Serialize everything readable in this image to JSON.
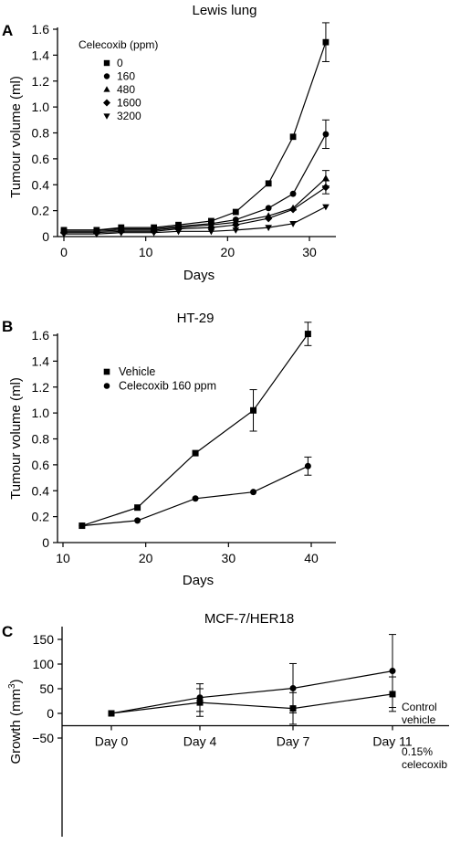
{
  "chart_data": [
    {
      "panel": "A",
      "type": "line",
      "title": "Lewis lung",
      "xlabel": "Days",
      "ylabel": "Tumour volume (ml)",
      "xlim": [
        0,
        34
      ],
      "ylim": [
        0,
        1.6
      ],
      "x_ticks": [
        0,
        10,
        20,
        30
      ],
      "y_ticks": [
        0,
        0.2,
        0.4,
        0.6,
        0.8,
        1.0,
        1.2,
        1.4,
        1.6
      ],
      "y_tick_labels": [
        "0",
        "0.2",
        "0.4",
        "0.6",
        "0.8",
        "1.0",
        "1.2",
        "1.4",
        "1.6"
      ],
      "legend_title": "Celecoxib (ppm)",
      "legend_position": "top-left",
      "series": [
        {
          "name": "0",
          "marker": "square",
          "x": [
            0,
            4,
            7,
            11,
            14,
            18,
            21,
            25,
            28,
            32
          ],
          "y": [
            0.05,
            0.05,
            0.07,
            0.07,
            0.09,
            0.12,
            0.19,
            0.41,
            0.77,
            1.5
          ],
          "err": [
            0,
            0,
            0,
            0,
            0,
            0,
            0,
            0,
            0,
            0.15
          ]
        },
        {
          "name": "160",
          "marker": "circle",
          "x": [
            0,
            4,
            7,
            11,
            14,
            18,
            21,
            25,
            28,
            32
          ],
          "y": [
            0.05,
            0.05,
            0.06,
            0.06,
            0.08,
            0.1,
            0.13,
            0.22,
            0.33,
            0.79
          ],
          "err": [
            0,
            0,
            0,
            0,
            0,
            0,
            0,
            0,
            0,
            0.11
          ]
        },
        {
          "name": "480",
          "marker": "triangle-up",
          "x": [
            0,
            4,
            7,
            11,
            14,
            18,
            21,
            25,
            28,
            32
          ],
          "y": [
            0.04,
            0.04,
            0.05,
            0.05,
            0.07,
            0.09,
            0.11,
            0.16,
            0.22,
            0.45
          ],
          "err": [
            0,
            0,
            0,
            0,
            0,
            0,
            0,
            0,
            0,
            0.06
          ]
        },
        {
          "name": "1600",
          "marker": "diamond",
          "x": [
            0,
            4,
            7,
            11,
            14,
            18,
            21,
            25,
            28,
            32
          ],
          "y": [
            0.03,
            0.03,
            0.04,
            0.04,
            0.06,
            0.07,
            0.09,
            0.14,
            0.21,
            0.38
          ],
          "err": [
            0,
            0,
            0,
            0,
            0,
            0,
            0,
            0,
            0,
            0.05
          ]
        },
        {
          "name": "3200",
          "marker": "triangle-down",
          "x": [
            0,
            4,
            7,
            11,
            14,
            18,
            21,
            25,
            28,
            32
          ],
          "y": [
            0.02,
            0.02,
            0.03,
            0.03,
            0.04,
            0.04,
            0.05,
            0.07,
            0.1,
            0.23
          ],
          "err": [
            0,
            0,
            0,
            0,
            0,
            0,
            0,
            0,
            0,
            0
          ]
        }
      ]
    },
    {
      "panel": "B",
      "type": "line",
      "title": "HT-29",
      "xlabel": "Days",
      "ylabel": "Tumour volume (ml)",
      "xlim": [
        10,
        42
      ],
      "ylim": [
        0,
        1.6
      ],
      "x_ticks": [
        10,
        20,
        30,
        40
      ],
      "y_ticks": [
        0,
        0.2,
        0.4,
        0.6,
        0.8,
        1.0,
        1.2,
        1.4,
        1.6
      ],
      "y_tick_labels": [
        "0",
        "0.2",
        "0.4",
        "0.6",
        "0.8",
        "1.0",
        "1.2",
        "1.4",
        "1.6"
      ],
      "legend_position": "top-left",
      "series": [
        {
          "name": "Vehicle",
          "marker": "square",
          "x": [
            12.3,
            19,
            26,
            33,
            39.6
          ],
          "y": [
            0.13,
            0.27,
            0.69,
            1.02,
            1.61
          ],
          "err": [
            0,
            0,
            0,
            0.16,
            0.09
          ]
        },
        {
          "name": "Celecoxib 160 ppm",
          "marker": "circle",
          "x": [
            12.3,
            19,
            26,
            33,
            39.6
          ],
          "y": [
            0.13,
            0.17,
            0.34,
            0.39,
            0.59
          ],
          "err": [
            0,
            0,
            0,
            0,
            0.07
          ]
        }
      ]
    },
    {
      "panel": "C",
      "type": "line",
      "title": "MCF-7/HER18",
      "xlabel": "",
      "ylabel": "Growth (mm",
      "ylabel_sup": "3",
      "ylabel_close": ")",
      "categories": [
        "Day 0",
        "Day 4",
        "Day 7",
        "Day 11"
      ],
      "ylim": [
        -50,
        175
      ],
      "y_ticks": [
        -50,
        0,
        50,
        100,
        150
      ],
      "y_tick_labels": [
        "−50",
        "0",
        "50",
        "100",
        "150"
      ],
      "series": [
        {
          "name": "Control vehicle",
          "label_lines": [
            "Control",
            "vehicle"
          ],
          "marker": "circle",
          "values": [
            0,
            32,
            51,
            86
          ],
          "err": [
            0,
            28,
            50,
            74
          ]
        },
        {
          "name": "0.15% celecoxib",
          "label_lines": [
            "0.15%",
            "celecoxib"
          ],
          "marker": "square",
          "values": [
            0,
            22,
            10,
            39
          ],
          "err": [
            0,
            28,
            32,
            35
          ]
        }
      ]
    }
  ]
}
